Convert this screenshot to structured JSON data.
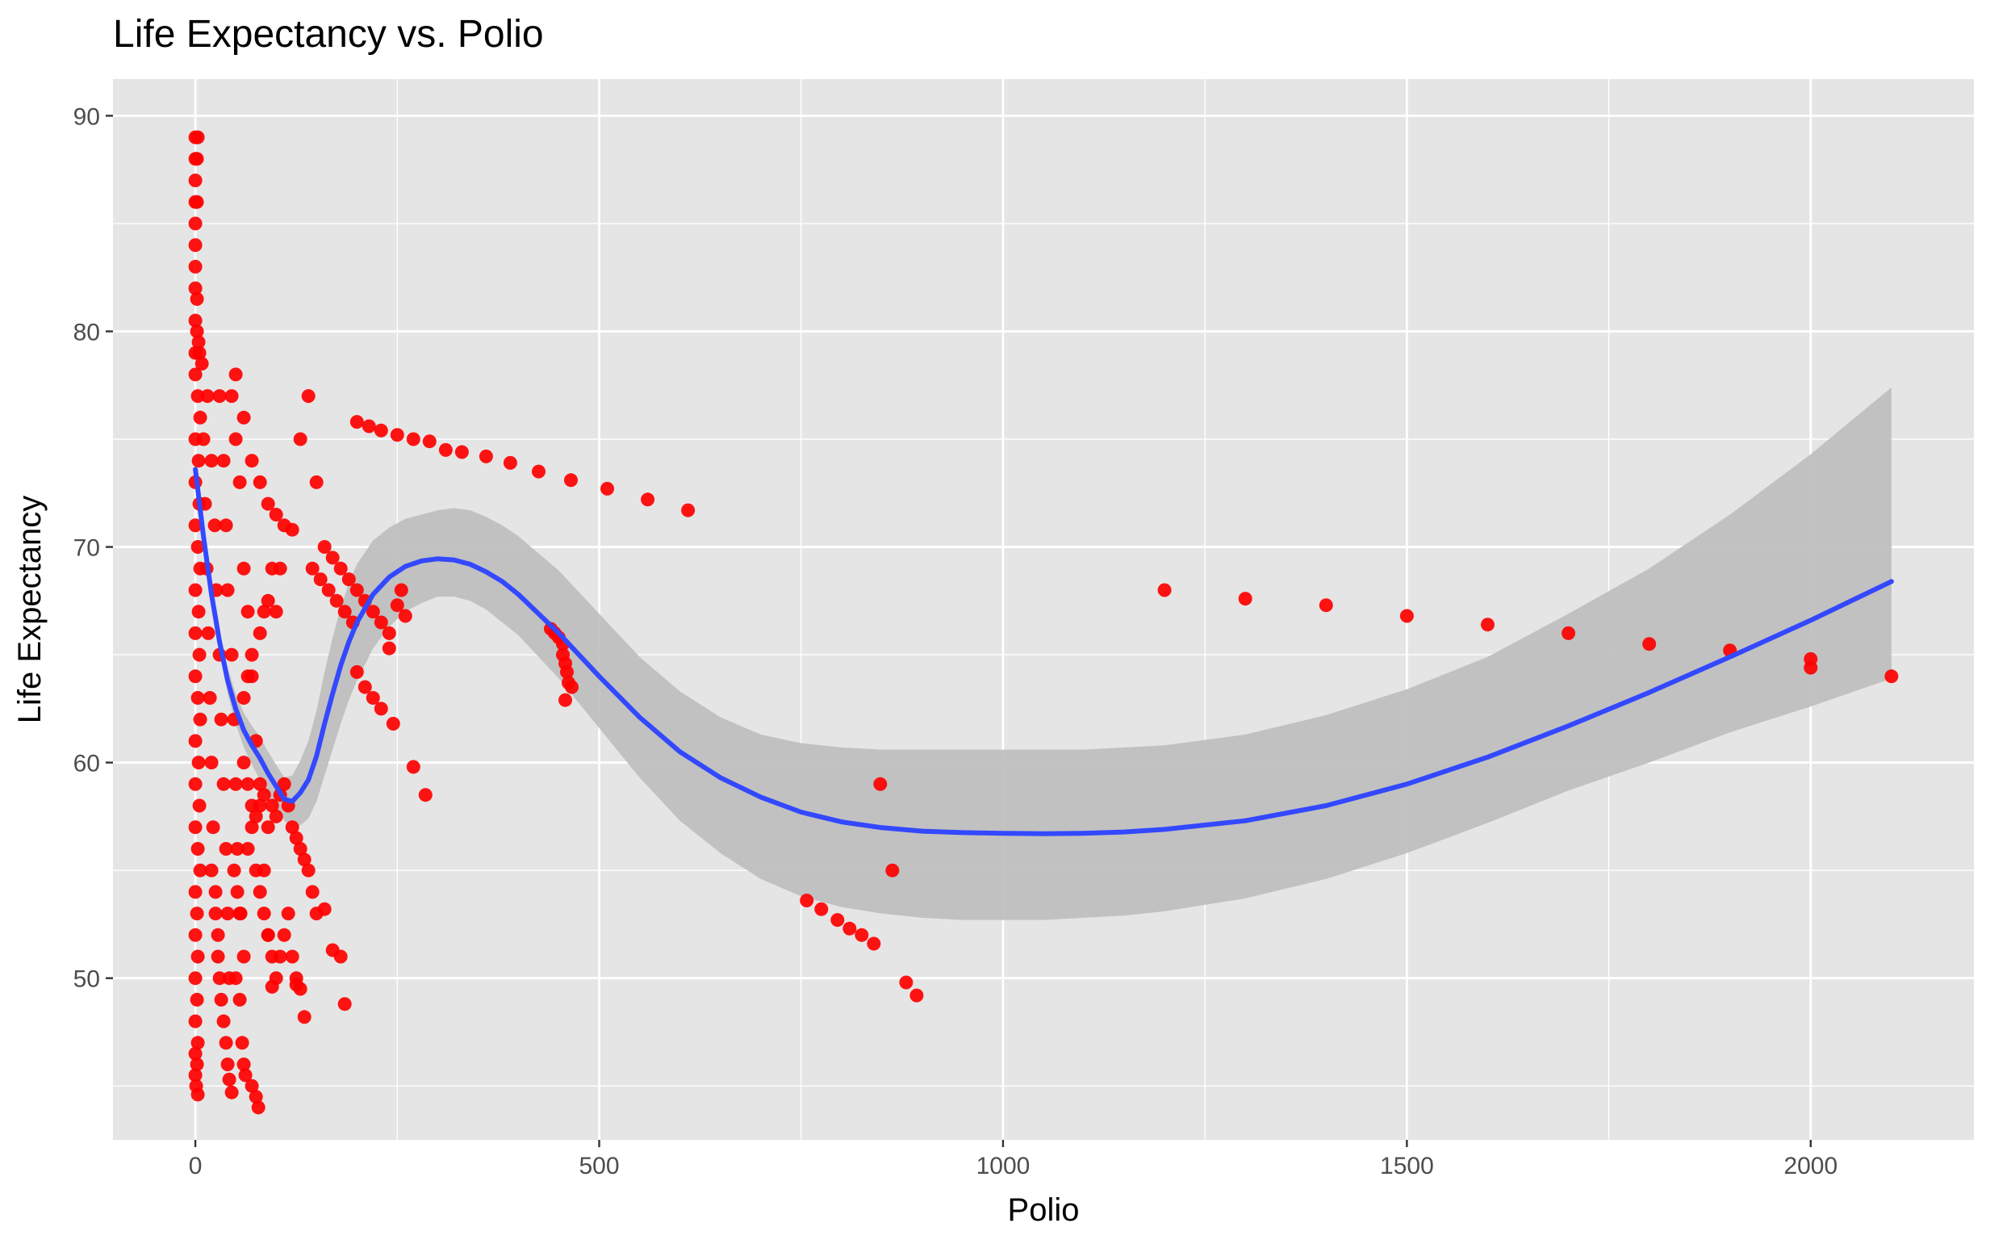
{
  "chart_data": {
    "type": "scatter",
    "title": "Life Expectancy vs. Polio",
    "xlabel": "Polio",
    "ylabel": "Life Expectancy",
    "xlim": [
      -102,
      2202
    ],
    "ylim": [
      42.5,
      91.7
    ],
    "x_ticks": [
      0,
      500,
      1000,
      1500,
      2000
    ],
    "y_ticks": [
      50,
      60,
      70,
      80,
      90
    ],
    "grid": true,
    "legend": "none",
    "colors": {
      "points": "#ff0000",
      "smooth_line": "#3348ff",
      "ribbon": "#bdbdbd",
      "panel": "#e5e5e5",
      "grid": "#ffffff",
      "tick": "#333333"
    },
    "series": [
      {
        "type": "scatter",
        "points": [
          [
            0,
            89
          ],
          [
            3,
            89
          ],
          [
            0,
            88
          ],
          [
            2,
            88
          ],
          [
            0,
            87
          ],
          [
            0,
            86
          ],
          [
            2,
            86
          ],
          [
            0,
            85
          ],
          [
            0,
            84
          ],
          [
            0,
            83
          ],
          [
            0,
            82
          ],
          [
            2,
            81.5
          ],
          [
            0,
            80.5
          ],
          [
            2,
            80
          ],
          [
            4,
            79.5
          ],
          [
            0,
            79
          ],
          [
            5,
            79
          ],
          [
            8,
            78.5
          ],
          [
            0,
            78
          ],
          [
            3,
            77
          ],
          [
            6,
            76
          ],
          [
            0,
            75
          ],
          [
            4,
            74
          ],
          [
            0,
            73
          ],
          [
            5,
            72
          ],
          [
            0,
            71
          ],
          [
            3,
            70
          ],
          [
            6,
            69
          ],
          [
            0,
            68
          ],
          [
            4,
            67
          ],
          [
            0,
            66
          ],
          [
            5,
            65
          ],
          [
            0,
            64
          ],
          [
            3,
            63
          ],
          [
            6,
            62
          ],
          [
            0,
            61
          ],
          [
            4,
            60
          ],
          [
            0,
            59
          ],
          [
            5,
            58
          ],
          [
            0,
            57
          ],
          [
            3,
            56
          ],
          [
            6,
            55
          ],
          [
            0,
            54
          ],
          [
            2,
            53
          ],
          [
            0,
            52
          ],
          [
            3,
            51
          ],
          [
            0,
            50
          ],
          [
            2,
            49
          ],
          [
            0,
            48
          ],
          [
            3,
            47
          ],
          [
            0,
            46.5
          ],
          [
            2,
            46
          ],
          [
            0,
            45.5
          ],
          [
            1,
            45
          ],
          [
            3,
            44.6
          ],
          [
            10,
            75
          ],
          [
            12,
            72
          ],
          [
            14,
            69
          ],
          [
            16,
            66
          ],
          [
            18,
            63
          ],
          [
            20,
            60
          ],
          [
            22,
            57
          ],
          [
            25,
            54
          ],
          [
            28,
            51
          ],
          [
            15,
            77
          ],
          [
            20,
            74
          ],
          [
            24,
            71
          ],
          [
            26,
            68
          ],
          [
            30,
            65
          ],
          [
            32,
            62
          ],
          [
            35,
            59
          ],
          [
            38,
            56
          ],
          [
            40,
            53
          ],
          [
            42,
            50
          ],
          [
            30,
            77
          ],
          [
            35,
            74
          ],
          [
            38,
            71
          ],
          [
            40,
            68
          ],
          [
            45,
            65
          ],
          [
            48,
            62
          ],
          [
            50,
            59
          ],
          [
            52,
            56
          ],
          [
            55,
            53
          ],
          [
            45,
            77
          ],
          [
            50,
            75
          ],
          [
            55,
            73
          ],
          [
            60,
            69
          ],
          [
            65,
            67
          ],
          [
            70,
            64
          ],
          [
            75,
            61
          ],
          [
            80,
            58
          ],
          [
            85,
            55
          ],
          [
            90,
            52
          ],
          [
            95,
            49.6
          ],
          [
            50,
            78
          ],
          [
            60,
            76
          ],
          [
            70,
            74
          ],
          [
            80,
            73
          ],
          [
            90,
            72
          ],
          [
            100,
            71.5
          ],
          [
            110,
            71
          ],
          [
            120,
            70.8
          ],
          [
            30,
            50
          ],
          [
            32,
            49
          ],
          [
            35,
            48
          ],
          [
            38,
            47
          ],
          [
            40,
            46
          ],
          [
            42,
            45.3
          ],
          [
            45,
            44.7
          ],
          [
            50,
            50
          ],
          [
            55,
            49
          ],
          [
            58,
            47
          ],
          [
            60,
            46
          ],
          [
            62,
            45.5
          ],
          [
            70,
            45
          ],
          [
            75,
            44.5
          ],
          [
            78,
            44
          ],
          [
            20,
            55
          ],
          [
            25,
            53
          ],
          [
            28,
            52
          ],
          [
            48,
            55
          ],
          [
            52,
            54
          ],
          [
            56,
            53
          ],
          [
            60,
            51
          ],
          [
            65,
            56
          ],
          [
            70,
            57
          ],
          [
            75,
            55
          ],
          [
            80,
            54
          ],
          [
            85,
            53
          ],
          [
            90,
            52
          ],
          [
            95,
            51
          ],
          [
            100,
            50
          ],
          [
            105,
            51
          ],
          [
            110,
            52
          ],
          [
            115,
            53
          ],
          [
            120,
            51
          ],
          [
            125,
            50
          ],
          [
            60,
            60
          ],
          [
            65,
            59
          ],
          [
            70,
            58
          ],
          [
            75,
            57.5
          ],
          [
            80,
            59
          ],
          [
            85,
            58.5
          ],
          [
            90,
            57
          ],
          [
            95,
            58
          ],
          [
            100,
            57.5
          ],
          [
            105,
            58.5
          ],
          [
            110,
            59
          ],
          [
            115,
            58
          ],
          [
            120,
            57
          ],
          [
            125,
            56.5
          ],
          [
            130,
            56
          ],
          [
            135,
            55.5
          ],
          [
            140,
            55
          ],
          [
            145,
            54
          ],
          [
            150,
            53
          ],
          [
            60,
            63
          ],
          [
            65,
            64
          ],
          [
            70,
            65
          ],
          [
            80,
            66
          ],
          [
            85,
            67
          ],
          [
            90,
            67.5
          ],
          [
            100,
            67
          ],
          [
            105,
            69
          ],
          [
            95,
            69
          ],
          [
            130,
            75
          ],
          [
            140,
            77
          ],
          [
            150,
            73
          ],
          [
            160,
            70
          ],
          [
            170,
            69.5
          ],
          [
            180,
            69
          ],
          [
            190,
            68.5
          ],
          [
            200,
            68
          ],
          [
            210,
            67.5
          ],
          [
            220,
            67
          ],
          [
            230,
            66.5
          ],
          [
            240,
            66
          ],
          [
            145,
            69
          ],
          [
            155,
            68.5
          ],
          [
            165,
            68
          ],
          [
            175,
            67.5
          ],
          [
            185,
            67
          ],
          [
            195,
            66.5
          ],
          [
            200,
            75.8
          ],
          [
            215,
            75.6
          ],
          [
            230,
            75.4
          ],
          [
            250,
            75.2
          ],
          [
            270,
            75
          ],
          [
            290,
            74.9
          ],
          [
            310,
            74.5
          ],
          [
            330,
            74.4
          ],
          [
            360,
            74.2
          ],
          [
            390,
            73.9
          ],
          [
            425,
            73.5
          ],
          [
            465,
            73.1
          ],
          [
            510,
            72.7
          ],
          [
            560,
            72.2
          ],
          [
            610,
            71.7
          ],
          [
            200,
            64.2
          ],
          [
            210,
            63.5
          ],
          [
            220,
            63
          ],
          [
            230,
            62.5
          ],
          [
            245,
            61.8
          ],
          [
            255,
            68
          ],
          [
            250,
            67.3
          ],
          [
            260,
            66.8
          ],
          [
            240,
            65.3
          ],
          [
            270,
            59.8
          ],
          [
            285,
            58.5
          ],
          [
            160,
            53.2
          ],
          [
            170,
            51.3
          ],
          [
            180,
            51
          ],
          [
            185,
            48.8
          ],
          [
            135,
            48.2
          ],
          [
            130,
            49.5
          ],
          [
            125,
            49.7
          ],
          [
            440,
            66.2
          ],
          [
            445,
            66
          ],
          [
            450,
            65.8
          ],
          [
            455,
            65.5
          ],
          [
            455,
            65
          ],
          [
            458,
            64.6
          ],
          [
            460,
            64.2
          ],
          [
            462,
            63.7
          ],
          [
            466,
            63.5
          ],
          [
            458,
            62.9
          ],
          [
            757,
            53.6
          ],
          [
            775,
            53.2
          ],
          [
            795,
            52.7
          ],
          [
            810,
            52.3
          ],
          [
            825,
            52
          ],
          [
            840,
            51.6
          ],
          [
            848,
            59
          ],
          [
            863,
            55
          ],
          [
            880,
            49.8
          ],
          [
            893,
            49.2
          ],
          [
            1200,
            68
          ],
          [
            1300,
            67.6
          ],
          [
            1400,
            67.3
          ],
          [
            1500,
            66.8
          ],
          [
            1600,
            66.4
          ],
          [
            1700,
            66
          ],
          [
            1800,
            65.5
          ],
          [
            1900,
            65.2
          ],
          [
            2000,
            64.8
          ],
          [
            2000,
            64.4
          ],
          [
            2100,
            64
          ]
        ]
      },
      {
        "type": "line",
        "name": "",
        "x": [
          0,
          10,
          20,
          30,
          40,
          50,
          60,
          70,
          80,
          90,
          100,
          110,
          120,
          130,
          140,
          150,
          160,
          170,
          180,
          190,
          200,
          220,
          240,
          260,
          280,
          300,
          320,
          340,
          360,
          380,
          400,
          450,
          500,
          550,
          600,
          650,
          700,
          750,
          800,
          850,
          900,
          950,
          1000,
          1050,
          1100,
          1150,
          1200,
          1300,
          1400,
          1500,
          1600,
          1700,
          1800,
          1900,
          2000,
          2100
        ],
        "y": [
          73.6,
          70.5,
          67.8,
          65.6,
          63.8,
          62.5,
          61.5,
          60.8,
          60.2,
          59.5,
          58.9,
          58.3,
          58.2,
          58.6,
          59.2,
          60.3,
          61.8,
          63.2,
          64.5,
          65.6,
          66.5,
          67.8,
          68.6,
          69.1,
          69.35,
          69.45,
          69.4,
          69.2,
          68.85,
          68.4,
          67.8,
          66.0,
          64.0,
          62.1,
          60.5,
          59.3,
          58.4,
          57.7,
          57.25,
          56.98,
          56.82,
          56.75,
          56.72,
          56.7,
          56.72,
          56.78,
          56.9,
          57.3,
          58.0,
          59.0,
          60.25,
          61.7,
          63.25,
          64.9,
          66.6,
          68.4
        ]
      },
      {
        "type": "area",
        "name": "",
        "x": [
          0,
          10,
          20,
          30,
          40,
          50,
          60,
          70,
          80,
          90,
          100,
          110,
          120,
          130,
          140,
          150,
          160,
          170,
          180,
          190,
          200,
          220,
          240,
          260,
          280,
          300,
          320,
          340,
          360,
          380,
          400,
          450,
          500,
          550,
          600,
          650,
          700,
          750,
          800,
          850,
          900,
          950,
          1000,
          1050,
          1100,
          1150,
          1200,
          1300,
          1400,
          1500,
          1600,
          1700,
          1800,
          1900,
          2000,
          2100
        ],
        "y_low": [
          73.6,
          70.2,
          67.4,
          65.1,
          63.2,
          61.8,
          60.7,
          59.9,
          59.2,
          58.5,
          57.9,
          57.3,
          57.0,
          57.1,
          57.4,
          58.2,
          59.4,
          60.6,
          61.8,
          62.9,
          63.8,
          65.3,
          66.3,
          67.0,
          67.4,
          67.7,
          67.7,
          67.5,
          67.1,
          66.5,
          65.9,
          63.9,
          61.6,
          59.3,
          57.3,
          55.8,
          54.6,
          53.8,
          53.3,
          53.0,
          52.8,
          52.7,
          52.7,
          52.7,
          52.8,
          52.9,
          53.1,
          53.7,
          54.6,
          55.8,
          57.2,
          58.7,
          60.0,
          61.4,
          62.6,
          63.9
        ],
        "y_high": [
          73.6,
          70.8,
          68.2,
          66.1,
          64.4,
          63.2,
          62.3,
          61.7,
          61.2,
          60.5,
          59.9,
          59.3,
          59.4,
          60.1,
          61.0,
          62.4,
          64.2,
          65.8,
          67.2,
          68.3,
          69.2,
          70.3,
          70.9,
          71.3,
          71.5,
          71.7,
          71.8,
          71.7,
          71.4,
          71.0,
          70.5,
          68.9,
          66.9,
          64.9,
          63.3,
          62.1,
          61.3,
          60.9,
          60.7,
          60.6,
          60.6,
          60.6,
          60.6,
          60.6,
          60.6,
          60.7,
          60.8,
          61.3,
          62.2,
          63.4,
          64.9,
          66.9,
          69.0,
          71.5,
          74.3,
          77.4
        ]
      }
    ]
  }
}
